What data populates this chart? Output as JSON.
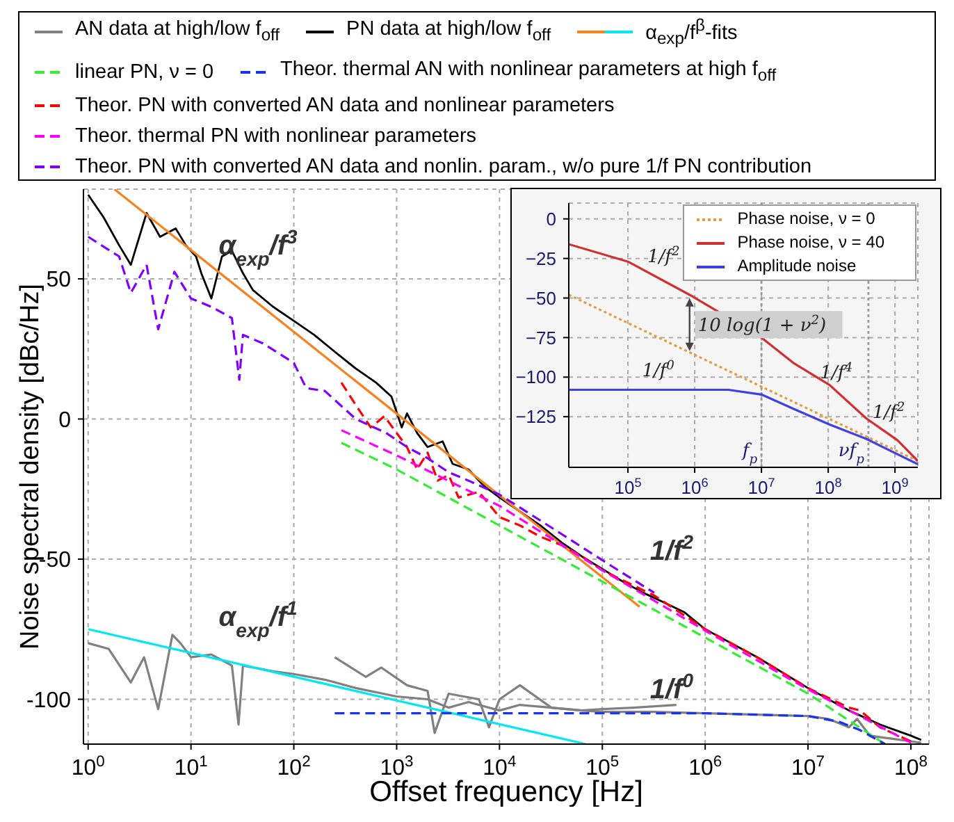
{
  "chart_data": [
    {
      "type": "line",
      "xlabel": "Offset frequency [Hz]",
      "ylabel": "Noise spectral density [dBc/Hz]",
      "log": "x",
      "grid": true,
      "legend": "top",
      "xlim": [
        0.9,
        150000000
      ],
      "ylim": [
        -116,
        82
      ],
      "xticks": [
        {
          "value": 1,
          "label": "10$^{0}$"
        },
        {
          "value": 10,
          "label": "10$^{1}$"
        },
        {
          "value": 100,
          "label": "10$^{2}$"
        },
        {
          "value": 1000,
          "label": "10$^{3}$"
        },
        {
          "value": 10000,
          "label": "10$^{4}$"
        },
        {
          "value": 100000,
          "label": "10$^{5}$"
        },
        {
          "value": 1000000,
          "label": "10$^{6}$"
        },
        {
          "value": 10000000,
          "label": "10$^{7}$"
        },
        {
          "value": 100000000,
          "label": "10$^{8}$"
        }
      ],
      "yticks": [
        -100,
        -50,
        0,
        50
      ],
      "series": [
        {
          "name": "AN data at high/low f$_{off}$",
          "color": "#808080",
          "line_style": "solid",
          "x": [
            1,
            1.58,
            2.6,
            3.5,
            4.8,
            6.6,
            7.9,
            10,
            15.8,
            25,
            29,
            32,
            63,
            100,
            200,
            400,
            1000,
            2000,
            3200,
            5000,
            10000,
            15800,
            32000,
            63000,
            100000,
            200000,
            525000
          ],
          "values": [
            -80,
            -82,
            -94,
            -85,
            -103.5,
            -77,
            -80,
            -85,
            -84,
            -88,
            -109,
            -88,
            -90,
            -91,
            -93,
            -96,
            -99,
            -100,
            -103,
            -101,
            -104,
            -102,
            -103,
            -104,
            -103.5,
            -103,
            -102
          ]
        },
        {
          "color": "#808080",
          "line_style": "solid",
          "x": [
            250,
            500,
            710,
            1260,
            2000,
            2340,
            3200,
            6300,
            7900,
            10000,
            15800,
            32000,
            63000,
            100000,
            320000,
            1000000,
            3200000,
            10000000,
            15800000,
            25000000,
            30000000,
            40000000,
            63000000,
            100000000,
            126000000
          ],
          "values": [
            -85,
            -92,
            -88.7,
            -95,
            -97,
            -112,
            -98,
            -100,
            -110,
            -100,
            -95,
            -103,
            -104,
            -104.5,
            -104.5,
            -105,
            -105.5,
            -106,
            -107,
            -110,
            -107,
            -113,
            -114,
            -115,
            -115.5
          ]
        },
        {
          "name": "PN data at high/low f$_{off}$",
          "color": "#000000",
          "line_style": "solid",
          "x": [
            1,
            1.41,
            2,
            2.6,
            3.7,
            5,
            7.1,
            8.9,
            11.2,
            12.6,
            15.8,
            20,
            25,
            32,
            40,
            63,
            100,
            158,
            250,
            400,
            630,
            890,
            1120,
            1260,
            1580,
            2000,
            2800,
            3500,
            5000,
            7100,
            10000,
            15800,
            25000,
            40000,
            63000,
            100000,
            158000,
            250000,
            400000,
            630000,
            1000000,
            3200000,
            10000000,
            25000000,
            50000000,
            100000000,
            126000000
          ],
          "values": [
            80,
            72,
            62,
            55,
            73.5,
            65,
            68,
            62,
            58,
            52,
            43,
            58,
            60,
            52,
            46,
            40,
            35,
            30,
            24,
            18,
            13,
            8,
            -3,
            2,
            -5,
            -10,
            -8,
            -16,
            -18,
            -24,
            -28,
            -33,
            -38,
            -44,
            -49,
            -53.5,
            -58,
            -62,
            -65.5,
            -69,
            -75,
            -85,
            -96,
            -104,
            -109,
            -113,
            -114.5
          ]
        },
        {
          "name": "α$_{exp}$/f$^{β}$-fits",
          "color": "#f5821f",
          "line_style": "solid",
          "x": [
            1.8,
            230000
          ],
          "values": [
            82,
            -67
          ]
        },
        {
          "color": "#00e8f0",
          "line_style": "solid",
          "x": [
            1,
            69000
          ],
          "values": [
            -75,
            -116
          ]
        },
        {
          "name": "linear PN, ν = 0",
          "color": "#33ee33",
          "line_style": "dashed",
          "x": [
            290,
            1000,
            10000,
            100000,
            1000000,
            10000000,
            56000000
          ],
          "values": [
            -8.5,
            -18,
            -38,
            -58,
            -78,
            -98,
            -116
          ]
        },
        {
          "name": "Theor. thermal AN with nonlinear parameters at high f$_{off}$",
          "color": "#1a33ee",
          "line_style": "dashed",
          "x": [
            250,
            100000,
            1000000,
            10000000,
            20000000,
            32000000,
            56000000
          ],
          "values": [
            -105,
            -105,
            -105,
            -106,
            -108,
            -111,
            -116
          ]
        },
        {
          "name": "Theor. PN with converted AN data and nonlinear parameters",
          "color": "#ff0000",
          "line_style": "dashed",
          "x": [
            290,
            400,
            560,
            760,
            1000,
            1260,
            1580,
            2000,
            2500,
            3200,
            4000,
            6300,
            10000,
            15800,
            25000,
            40000,
            63000,
            100000,
            320000,
            1000000,
            3200000,
            10000000,
            25000000,
            32000000,
            50000000,
            100000000
          ],
          "values": [
            13,
            5,
            -3,
            1,
            -5,
            -10,
            -18,
            -12,
            -22,
            -20,
            -28,
            -26,
            -35,
            -38,
            -42,
            -45,
            -49,
            -54,
            -63,
            -75,
            -85,
            -96,
            -103,
            -104,
            -110,
            -115
          ]
        },
        {
          "name": "Theor. thermal PN with nonlinear parameters",
          "color": "#ff00ff",
          "line_style": "dashed",
          "x": [
            290,
            1000,
            10000,
            100000,
            1000000,
            10000000,
            32000000,
            100000000
          ],
          "values": [
            -4,
            -13,
            -31,
            -54,
            -75.5,
            -96.5,
            -106,
            -115.5
          ]
        },
        {
          "name": "Theor. PN with converted AN data and nonlin. param., w/o pure 1/f PN contribution",
          "color": "#8000ff",
          "line_style": "dashed",
          "x": [
            1,
            2,
            2.6,
            3.7,
            4.8,
            6.9,
            10,
            15.8,
            25,
            29.5,
            32,
            50,
            100,
            132,
            200,
            400,
            790,
            1260,
            2000,
            3200,
            5000,
            10000,
            20000,
            40000,
            79000,
            158000,
            320000
          ],
          "values": [
            65,
            58,
            45,
            55,
            32,
            52.5,
            43,
            40,
            36,
            14,
            30,
            27,
            20,
            11,
            10,
            0,
            -5,
            -10,
            -14,
            -19,
            -22,
            -27,
            -34,
            -41,
            -48,
            -55,
            -62
          ]
        }
      ],
      "annotations": [
        "α$_{exp}$/f$^{3}$",
        "1/f$^{2}$",
        "α$_{exp}$/f$^{1}$",
        "1/f$^{0}$"
      ]
    },
    {
      "type": "line",
      "log": "x",
      "grid": true,
      "legend": "top right",
      "xlim": [
        13000,
        2200000000
      ],
      "ylim": [
        -157,
        10
      ],
      "xticks": [
        {
          "value": 100000,
          "label": "10$^{5}$"
        },
        {
          "value": 1000000,
          "label": "10$^{6}$"
        },
        {
          "value": 10000000,
          "label": "10$^{7}$"
        },
        {
          "value": 100000000,
          "label": "10$^{8}$"
        },
        {
          "value": 1000000000,
          "label": "10$^{9}$"
        }
      ],
      "yticks": [
        {
          "value": -125,
          "label": "−125"
        },
        {
          "value": -100,
          "label": "−100"
        },
        {
          "value": -75,
          "label": "−75"
        },
        {
          "value": -50,
          "label": "−50"
        },
        {
          "value": -25,
          "label": "−25"
        },
        0
      ],
      "series": [
        {
          "name": "Phase noise, ν = 0",
          "color": "#e0a040",
          "line_style": "dotted",
          "x": [
            13000,
            10000000,
            2200000000
          ],
          "values": [
            -48,
            -106,
            -153
          ]
        },
        {
          "name": "Phase noise, ν = 40",
          "color": "#d03030",
          "line_style": "solid",
          "x": [
            13000,
            100000,
            930000,
            10000000,
            30000000,
            105000000,
            370000000,
            1100000000,
            2200000000
          ],
          "values": [
            -16,
            -27,
            -49,
            -75,
            -91,
            -105,
            -126,
            -140,
            -153
          ]
        },
        {
          "name": "Amplitude noise",
          "color": "#4040e0",
          "line_style": "solid",
          "x": [
            13000,
            1000000,
            3200000,
            10000000,
            30000000,
            105000000,
            370000000,
            2200000000
          ],
          "values": [
            -108,
            -108,
            -108,
            -111,
            -120,
            -130,
            -139,
            -155
          ]
        }
      ],
      "ref_lines": [
        {
          "axis": "x",
          "value": 10000000,
          "label": "f$_{p}$",
          "line_style": "dotted",
          "color": "#999999"
        },
        {
          "axis": "x",
          "value": 400000000,
          "label": "νf$_{p}$",
          "line_style": "dotted",
          "color": "#999999"
        }
      ],
      "annotations": [
        "1/f$^{2}$",
        "10 log(1 + ν$^{2}$)",
        "1/f$^{0}$",
        "1/f$^{4}$",
        "1/f$^{2}$"
      ]
    }
  ]
}
